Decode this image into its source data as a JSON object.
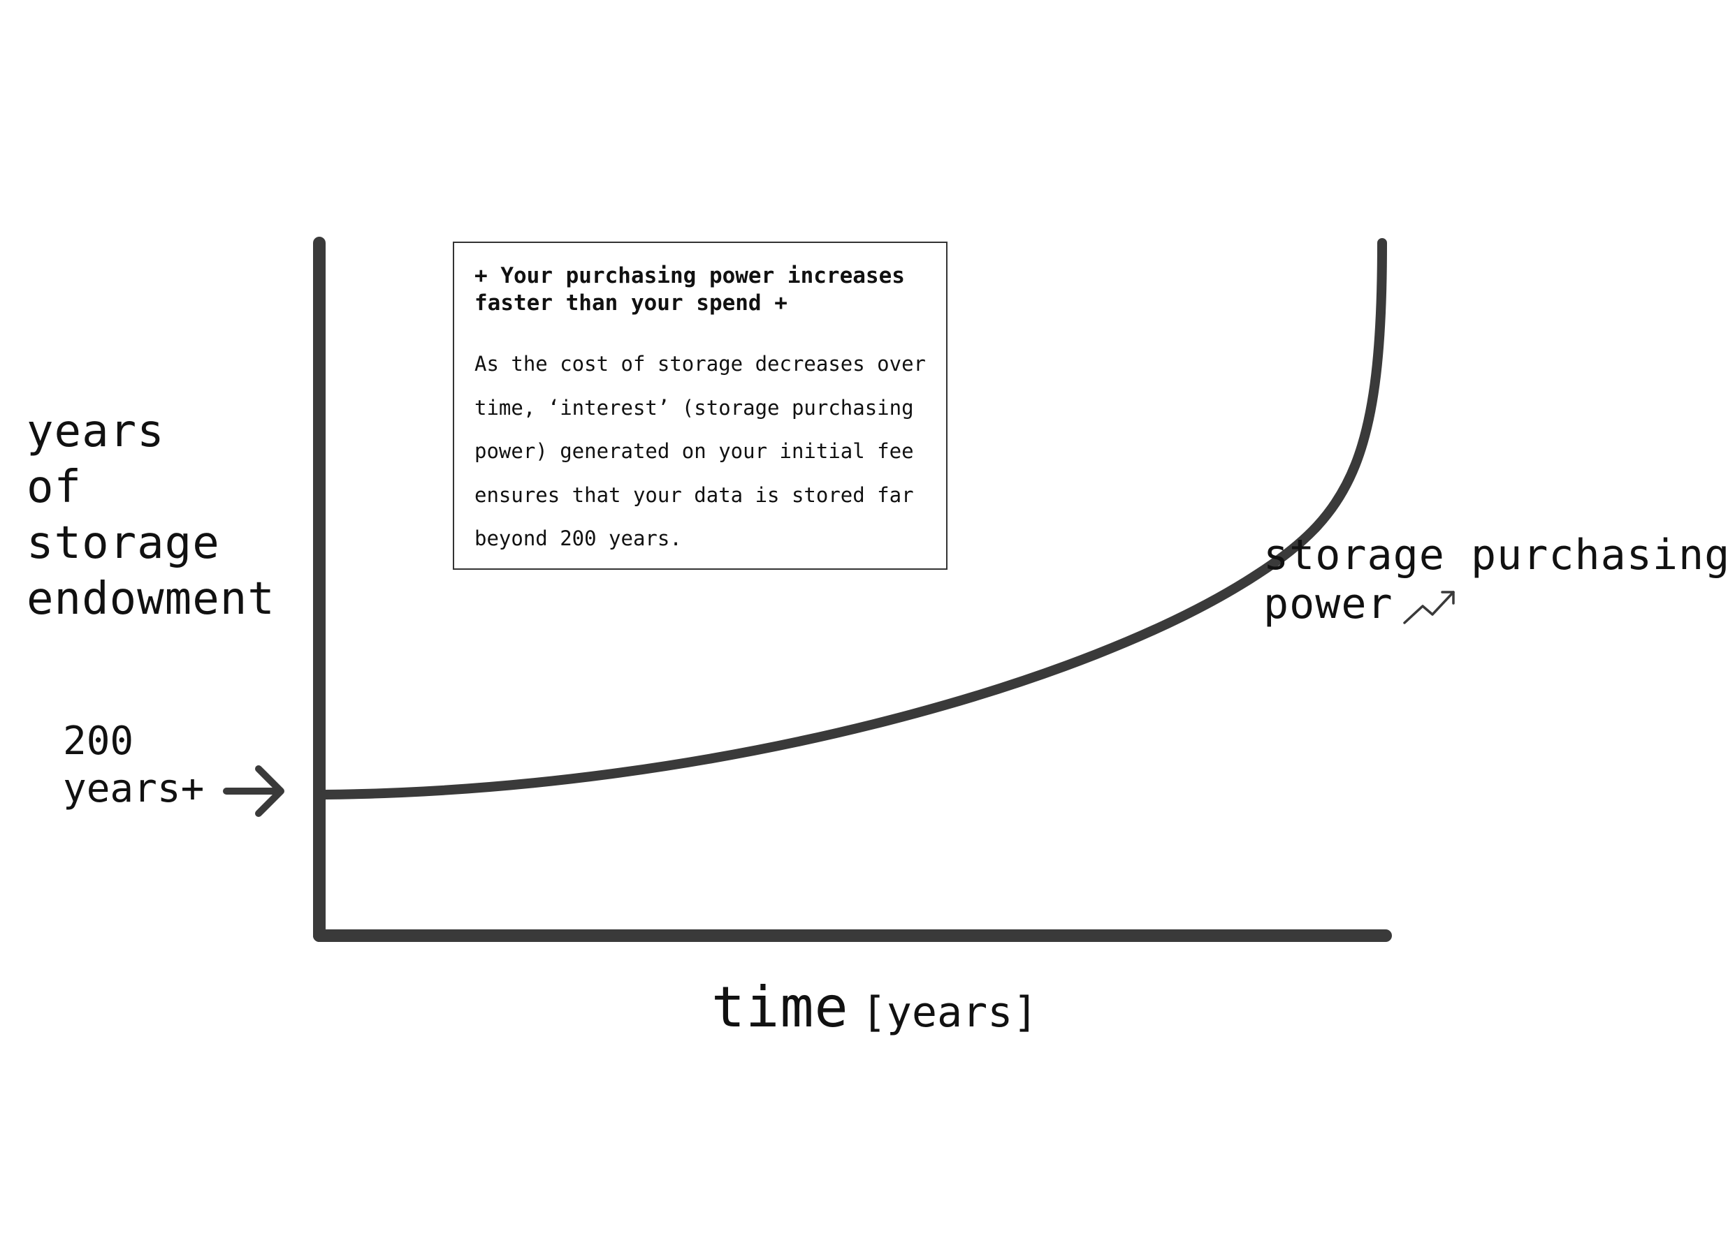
{
  "diagram": {
    "y_axis_label": [
      "years",
      "of",
      "storage",
      "endowment"
    ],
    "x_axis_label": "time",
    "x_axis_unit": "[years]",
    "marker_label": [
      "200",
      "years+"
    ],
    "curve_label": [
      "storage purchasing",
      "power"
    ],
    "curve_label_icon": "trending-up-icon",
    "callout": {
      "title": [
        "+ Your purchasing power increases",
        "faster than your spend +"
      ],
      "body": [
        "As the cost of storage decreases over",
        "time, ‘interest’ (storage purchasing",
        "power) generated on your initial fee",
        "ensures that your data is stored far",
        "beyond 200 years."
      ]
    },
    "colors": {
      "line": "#3a3a3a",
      "text": "#111111",
      "background": "#ffffff"
    }
  }
}
